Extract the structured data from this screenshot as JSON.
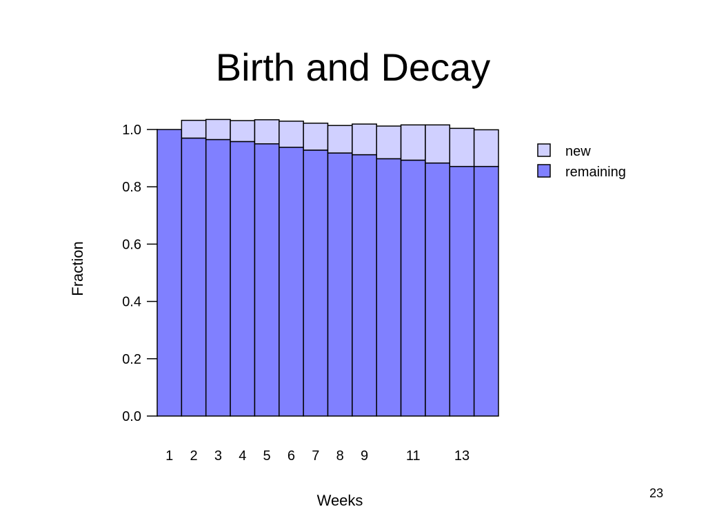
{
  "slide": {
    "title": "Birth and Decay",
    "page_number": "23"
  },
  "colors": {
    "remaining": "#8080ff",
    "new": "#d0d0ff",
    "stroke": "#000000"
  },
  "chart_data": {
    "type": "bar",
    "stacked": true,
    "title": "",
    "xlabel": "Weeks",
    "ylabel": "Fraction",
    "ylim": [
      0,
      1.0
    ],
    "yticks": [
      "0.0",
      "0.2",
      "0.4",
      "0.6",
      "0.8",
      "1.0"
    ],
    "categories": [
      "1",
      "2",
      "3",
      "4",
      "5",
      "6",
      "7",
      "8",
      "9",
      "10",
      "11",
      "12",
      "13",
      "14"
    ],
    "x_tick_labels_shown": [
      "1",
      "2",
      "3",
      "4",
      "5",
      "6",
      "7",
      "8",
      "9",
      "",
      "11",
      "",
      "13",
      ""
    ],
    "series": [
      {
        "name": "remaining",
        "values": [
          1.0,
          0.97,
          0.965,
          0.958,
          0.95,
          0.938,
          0.928,
          0.918,
          0.912,
          0.898,
          0.893,
          0.883,
          0.871,
          0.871
        ]
      },
      {
        "name": "new",
        "values": [
          0.0,
          0.062,
          0.07,
          0.073,
          0.084,
          0.091,
          0.094,
          0.096,
          0.107,
          0.114,
          0.123,
          0.133,
          0.133,
          0.128
        ]
      }
    ],
    "legend": {
      "position": "right",
      "entries": [
        "new",
        "remaining"
      ]
    },
    "grid": false
  }
}
